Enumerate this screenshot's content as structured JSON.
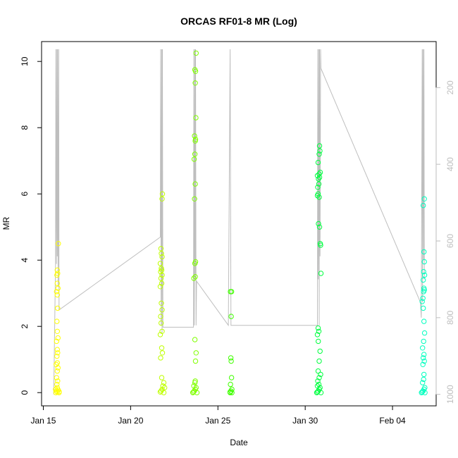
{
  "chart_data": {
    "type": "scatter",
    "title": "ORCAS RF01-8 MR (Log)",
    "xlabel": "Date",
    "ylabel": "MR",
    "x_tick_labels": [
      "Jan 15",
      "Jan 20",
      "Jan 25",
      "Jan 30",
      "Feb 04"
    ],
    "x_tick_days": [
      0,
      5,
      10,
      15,
      20
    ],
    "xlim_days": [
      -0.1,
      22.5
    ],
    "ylim": [
      -0.4,
      10.6
    ],
    "y_ticks": [
      0,
      2,
      4,
      6,
      8,
      10
    ],
    "right_axis": {
      "ticks": [
        200,
        400,
        600,
        800,
        1000
      ],
      "range": [
        1030,
        80
      ],
      "color": "#bebebe"
    },
    "grid": false,
    "point_style": "open circle",
    "series": [
      {
        "color": "#ffff00",
        "points": [
          [
            0.8,
            0.02
          ],
          [
            0.75,
            0.05
          ],
          [
            0.85,
            0.08
          ],
          [
            0.7,
            0.1
          ],
          [
            0.9,
            0.03
          ],
          [
            0.8,
            0.15
          ],
          [
            0.78,
            0.25
          ],
          [
            0.82,
            0.35
          ],
          [
            0.76,
            0.45
          ],
          [
            0.8,
            0.65
          ],
          [
            0.84,
            0.75
          ],
          [
            0.74,
            0.85
          ],
          [
            0.8,
            0.9
          ],
          [
            0.78,
            1.1
          ],
          [
            0.82,
            1.2
          ],
          [
            0.8,
            1.3
          ],
          [
            0.76,
            1.55
          ],
          [
            0.84,
            1.65
          ],
          [
            0.8,
            1.85
          ],
          [
            0.78,
            2.15
          ],
          [
            0.82,
            2.55
          ],
          [
            0.8,
            2.95
          ],
          [
            0.76,
            3.05
          ],
          [
            0.84,
            3.15
          ],
          [
            0.8,
            3.3
          ],
          [
            0.78,
            3.55
          ],
          [
            0.82,
            3.6
          ],
          [
            0.8,
            3.7
          ],
          [
            0.86,
            4.5
          ],
          [
            0.9,
            0.0
          ],
          [
            0.72,
            0.0
          ]
        ]
      },
      {
        "color": "#bfff00",
        "points": [
          [
            6.7,
            0.02
          ],
          [
            6.75,
            0.05
          ],
          [
            6.8,
            0.1
          ],
          [
            6.85,
            0.2
          ],
          [
            6.9,
            0.3
          ],
          [
            6.78,
            0.45
          ],
          [
            6.72,
            1.05
          ],
          [
            6.82,
            1.2
          ],
          [
            6.78,
            1.35
          ],
          [
            6.7,
            1.75
          ],
          [
            6.8,
            1.85
          ],
          [
            6.75,
            2.1
          ],
          [
            6.72,
            2.3
          ],
          [
            6.8,
            2.5
          ],
          [
            6.76,
            2.7
          ],
          [
            6.7,
            3.2
          ],
          [
            6.78,
            3.3
          ],
          [
            6.74,
            3.45
          ],
          [
            6.8,
            3.55
          ],
          [
            6.72,
            3.65
          ],
          [
            6.78,
            3.7
          ],
          [
            6.76,
            3.75
          ],
          [
            6.7,
            3.9
          ],
          [
            6.8,
            4.1
          ],
          [
            6.76,
            4.2
          ],
          [
            6.74,
            4.35
          ],
          [
            6.8,
            5.85
          ],
          [
            6.82,
            6.0
          ],
          [
            6.9,
            0.0
          ],
          [
            6.95,
            0.15
          ]
        ]
      },
      {
        "color": "#80ff00",
        "points": [
          [
            8.6,
            0.02
          ],
          [
            8.65,
            0.05
          ],
          [
            8.7,
            0.1
          ],
          [
            8.75,
            0.15
          ],
          [
            8.62,
            0.2
          ],
          [
            8.68,
            0.3
          ],
          [
            8.7,
            0.35
          ],
          [
            8.72,
            0.95
          ],
          [
            8.75,
            1.2
          ],
          [
            8.68,
            1.6
          ],
          [
            8.62,
            3.45
          ],
          [
            8.7,
            3.5
          ],
          [
            8.68,
            3.9
          ],
          [
            8.72,
            3.95
          ],
          [
            8.66,
            5.85
          ],
          [
            8.7,
            6.3
          ],
          [
            8.64,
            7.05
          ],
          [
            8.68,
            7.2
          ],
          [
            8.7,
            7.6
          ],
          [
            8.72,
            7.65
          ],
          [
            8.66,
            7.75
          ],
          [
            8.74,
            8.3
          ],
          [
            8.7,
            9.35
          ],
          [
            8.72,
            9.7
          ],
          [
            8.68,
            9.75
          ],
          [
            8.75,
            10.25
          ],
          [
            8.8,
            0.0
          ],
          [
            8.56,
            0.0
          ]
        ]
      },
      {
        "color": "#40ff00",
        "points": [
          [
            10.7,
            0.02
          ],
          [
            10.75,
            0.05
          ],
          [
            10.8,
            0.1
          ],
          [
            10.72,
            0.25
          ],
          [
            10.78,
            0.45
          ],
          [
            10.76,
            0.95
          ],
          [
            10.74,
            1.05
          ],
          [
            10.76,
            2.3
          ],
          [
            10.72,
            3.05
          ],
          [
            10.78,
            3.05
          ],
          [
            10.8,
            0.0
          ],
          [
            10.7,
            0.0
          ]
        ]
      },
      {
        "color": "#00ff40",
        "points": [
          [
            15.7,
            0.02
          ],
          [
            15.75,
            0.05
          ],
          [
            15.8,
            0.1
          ],
          [
            15.85,
            0.15
          ],
          [
            15.7,
            0.2
          ],
          [
            15.78,
            0.25
          ],
          [
            15.72,
            0.35
          ],
          [
            15.8,
            0.45
          ],
          [
            15.88,
            0.55
          ],
          [
            15.74,
            0.65
          ],
          [
            15.8,
            0.95
          ],
          [
            15.85,
            1.25
          ],
          [
            15.75,
            1.55
          ],
          [
            15.7,
            1.75
          ],
          [
            15.78,
            1.85
          ],
          [
            15.74,
            1.95
          ],
          [
            15.9,
            3.6
          ],
          [
            15.88,
            4.45
          ],
          [
            15.86,
            4.5
          ],
          [
            15.82,
            5.0
          ],
          [
            15.76,
            5.1
          ],
          [
            15.7,
            5.95
          ],
          [
            15.74,
            6.0
          ],
          [
            15.8,
            5.9
          ],
          [
            15.72,
            6.2
          ],
          [
            15.78,
            6.3
          ],
          [
            15.76,
            6.45
          ],
          [
            15.82,
            6.5
          ],
          [
            15.7,
            6.55
          ],
          [
            15.8,
            6.6
          ],
          [
            15.86,
            6.65
          ],
          [
            15.74,
            6.95
          ],
          [
            15.8,
            7.2
          ],
          [
            15.84,
            7.3
          ],
          [
            15.82,
            7.45
          ],
          [
            15.9,
            0.0
          ],
          [
            15.66,
            0.0
          ]
        ]
      },
      {
        "color": "#00ffbf",
        "points": [
          [
            21.7,
            0.02
          ],
          [
            21.75,
            0.05
          ],
          [
            21.8,
            0.1
          ],
          [
            21.85,
            0.15
          ],
          [
            21.72,
            0.3
          ],
          [
            21.78,
            0.4
          ],
          [
            21.8,
            0.55
          ],
          [
            21.74,
            0.85
          ],
          [
            21.82,
            0.95
          ],
          [
            21.76,
            1.05
          ],
          [
            21.8,
            1.15
          ],
          [
            21.72,
            1.35
          ],
          [
            21.78,
            1.55
          ],
          [
            21.84,
            1.8
          ],
          [
            21.8,
            2.15
          ],
          [
            21.76,
            2.55
          ],
          [
            21.7,
            2.75
          ],
          [
            21.74,
            2.85
          ],
          [
            21.78,
            3.05
          ],
          [
            21.82,
            3.1
          ],
          [
            21.8,
            3.15
          ],
          [
            21.76,
            3.4
          ],
          [
            21.84,
            3.55
          ],
          [
            21.78,
            3.65
          ],
          [
            21.82,
            3.95
          ],
          [
            21.8,
            4.25
          ],
          [
            21.76,
            5.65
          ],
          [
            21.82,
            5.85
          ],
          [
            21.86,
            0.0
          ],
          [
            21.66,
            0.0
          ]
        ]
      }
    ],
    "altitude_trace": {
      "color": "#bebebe",
      "points": [
        [
          0.6,
          1000
        ],
        [
          0.7,
          660
        ],
        [
          0.72,
          100
        ],
        [
          0.75,
          660
        ],
        [
          0.78,
          100
        ],
        [
          0.8,
          640
        ],
        [
          0.82,
          100
        ],
        [
          0.85,
          720
        ],
        [
          0.88,
          100
        ],
        [
          0.9,
          780
        ],
        [
          6.7,
          590
        ],
        [
          6.72,
          100
        ],
        [
          6.75,
          820
        ],
        [
          6.78,
          100
        ],
        [
          6.8,
          840
        ],
        [
          6.82,
          100
        ],
        [
          6.85,
          825
        ],
        [
          6.9,
          825
        ],
        [
          8.6,
          825
        ],
        [
          8.62,
          100
        ],
        [
          8.65,
          820
        ],
        [
          8.68,
          100
        ],
        [
          8.7,
          700
        ],
        [
          8.72,
          100
        ],
        [
          8.75,
          820
        ],
        [
          8.78,
          705
        ],
        [
          10.6,
          820
        ],
        [
          10.7,
          100
        ],
        [
          10.75,
          820
        ],
        [
          10.8,
          820
        ],
        [
          15.7,
          820
        ],
        [
          15.72,
          100
        ],
        [
          15.75,
          700
        ],
        [
          15.78,
          100
        ],
        [
          15.8,
          820
        ],
        [
          15.82,
          100
        ],
        [
          15.85,
          640
        ],
        [
          15.88,
          100
        ],
        [
          15.9,
          150
        ],
        [
          21.6,
          760
        ],
        [
          21.65,
          800
        ],
        [
          21.7,
          100
        ],
        [
          21.72,
          760
        ],
        [
          21.75,
          100
        ],
        [
          21.78,
          650
        ],
        [
          21.8,
          100
        ],
        [
          21.82,
          700
        ]
      ]
    }
  }
}
